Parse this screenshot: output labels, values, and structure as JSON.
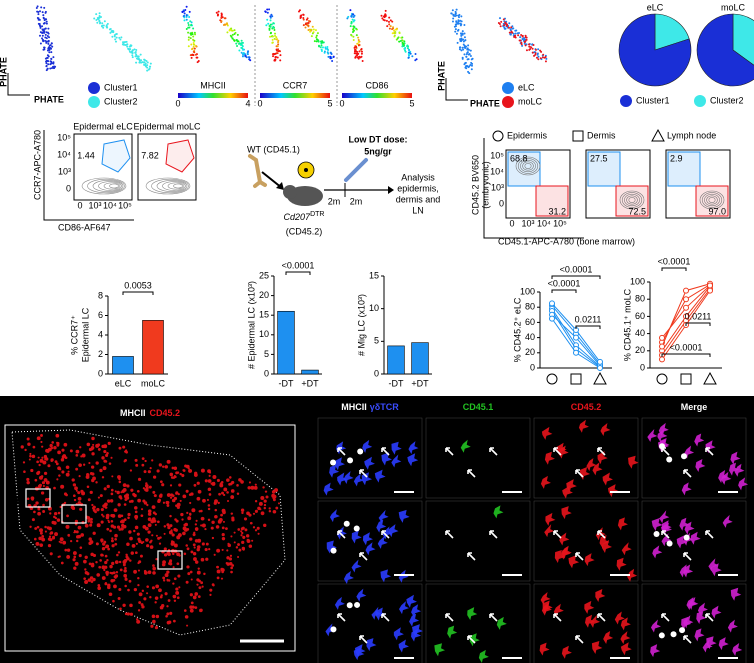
{
  "phate": {
    "x_label": "PHATE",
    "y_label": "PHATE",
    "legend": [
      {
        "label": "Cluster1",
        "color": "#1a2fd6"
      },
      {
        "label": "Cluster2",
        "color": "#3ee8e8"
      }
    ]
  },
  "markers": [
    {
      "name": "MHCII",
      "min": 0,
      "max": 4
    },
    {
      "name": "CCR7",
      "min": 0,
      "max": 5
    },
    {
      "name": "CD86",
      "min": 0,
      "max": 5
    }
  ],
  "phate_lc": {
    "x_label": "PHATE",
    "y_label": "PHATE",
    "legend": [
      {
        "label": "eLC",
        "color": "#1e7ff0"
      },
      {
        "label": "moLC",
        "color": "#e8141c"
      }
    ]
  },
  "flow": {
    "titles": [
      "Epidermal eLC",
      "Epidermal moLC"
    ],
    "gates": [
      "1.44",
      "7.82"
    ],
    "y_label": "CCR7-APC-A780",
    "x_label": "CD86-AF647",
    "y_ticks": [
      "10⁵",
      "10⁴",
      "10³",
      "0"
    ],
    "x_ticks": [
      "0",
      "10³",
      "10⁴",
      "10⁵"
    ]
  },
  "scheme": {
    "donor": "WT (CD45.1)",
    "recipient": "Cd207",
    "recipient_sup": "DTR",
    "recipient_strain": "(CD45.2)",
    "dose_title": "Low DT dose:",
    "dose": "5ng/gr",
    "intervals": [
      "2m",
      "2m"
    ],
    "analysis": [
      "Analysis",
      "epidermis,",
      "dermis and",
      "LN"
    ]
  },
  "chimera": {
    "tissues": [
      "Epidermis",
      "Dermis",
      "Lymph node"
    ],
    "gates": [
      [
        "68.8",
        "31.2"
      ],
      [
        "27.5",
        "72.5"
      ],
      [
        "2.9",
        "97.0"
      ]
    ],
    "y_label": [
      "CD45.2 BV650",
      "(embryonic)"
    ],
    "x_label": "CD45.1-APC-A780 (bone marrow)",
    "y_ticks": [
      "10⁵",
      "10⁴",
      "10³",
      "0"
    ],
    "x_ticks": [
      "0",
      "10³",
      "10⁴",
      "10⁵"
    ]
  },
  "imaging": {
    "overview": {
      "channels": [
        {
          "label": "MHCII",
          "color": "#ffffff"
        },
        {
          "label": "CD45.2",
          "color": "#e8141c"
        }
      ],
      "insets": [
        "1",
        "2",
        "3"
      ]
    },
    "columns": [
      [
        {
          "label": "MHCII",
          "color": "#ffffff"
        },
        {
          "label": "γδTCR",
          "color": "#3a4cff"
        }
      ],
      [
        {
          "label": "CD45.1",
          "color": "#22c322"
        }
      ],
      [
        {
          "label": "CD45.2",
          "color": "#e8141c"
        }
      ],
      [
        {
          "label": "Merge",
          "color": "#ffffff"
        }
      ]
    ],
    "rows": [
      "1",
      "2",
      "3"
    ]
  },
  "chart_data": [
    {
      "type": "pie",
      "categories": [
        "Cluster1",
        "Cluster2"
      ],
      "colors": [
        "#1a2fd6",
        "#3ee8e8"
      ],
      "series": [
        {
          "name": "eLC",
          "values": [
            80,
            20
          ]
        },
        {
          "name": "moLC",
          "values": [
            65,
            35
          ]
        }
      ]
    },
    {
      "type": "bar",
      "y_label": [
        "% CCR7⁺",
        "Epidermal LC"
      ],
      "categories": [
        "eLC",
        "moLC"
      ],
      "values": [
        1.8,
        5.5
      ],
      "colors": [
        "#1e90f0",
        "#f03a1e"
      ],
      "ylim": [
        0,
        8
      ],
      "yticks": [
        0,
        2,
        4,
        6,
        8
      ],
      "annotations": [
        "0.0053"
      ]
    },
    {
      "type": "bar",
      "y_label": [
        "# Epidermal LC (x10³)"
      ],
      "categories": [
        "-DT",
        "+DT"
      ],
      "values": [
        16,
        1
      ],
      "colors": [
        "#1e90f0",
        "#1e90f0"
      ],
      "ylim": [
        0,
        25
      ],
      "yticks": [
        0,
        5,
        10,
        15,
        20,
        25
      ],
      "annotations": [
        "<0.0001"
      ]
    },
    {
      "type": "bar",
      "y_label": [
        "# Mig LC (x10³)"
      ],
      "categories": [
        "-DT",
        "+DT"
      ],
      "values": [
        4.3,
        4.8
      ],
      "colors": [
        "#1e90f0",
        "#1e90f0"
      ],
      "ylim": [
        0,
        15
      ],
      "yticks": [
        0,
        5,
        10,
        15
      ],
      "annotations": []
    },
    {
      "type": "line",
      "y_label": [
        "% CD45.2⁺ eLC"
      ],
      "categories": [
        null,
        null,
        null
      ],
      "color": "#1e90f0",
      "series": [
        {
          "values": [
            82,
            45,
            5
          ]
        },
        {
          "values": [
            78,
            30,
            2
          ]
        },
        {
          "values": [
            75,
            25,
            1
          ]
        },
        {
          "values": [
            70,
            40,
            3
          ]
        },
        {
          "values": [
            65,
            20,
            0
          ]
        },
        {
          "values": [
            85,
            50,
            8
          ]
        }
      ],
      "ylim": [
        0,
        100
      ],
      "yticks": [
        0,
        20,
        40,
        60,
        80,
        100
      ],
      "annotations": [
        "<0.0001",
        "<0.0001",
        "0.0211"
      ]
    },
    {
      "type": "line",
      "y_label": [
        "% CD45.1⁺ moLC"
      ],
      "categories": [
        null,
        null,
        null
      ],
      "color": "#f03a1e",
      "series": [
        {
          "values": [
            20,
            60,
            95
          ]
        },
        {
          "values": [
            30,
            80,
            97
          ]
        },
        {
          "values": [
            15,
            55,
            92
          ]
        },
        {
          "values": [
            25,
            90,
            98
          ]
        },
        {
          "values": [
            35,
            70,
            96
          ]
        },
        {
          "values": [
            10,
            50,
            90
          ]
        }
      ],
      "ylim": [
        0,
        100
      ],
      "yticks": [
        0,
        20,
        40,
        60,
        80,
        100
      ],
      "annotations": [
        "<0.0001",
        "0.0211",
        "<0.0001"
      ]
    }
  ]
}
